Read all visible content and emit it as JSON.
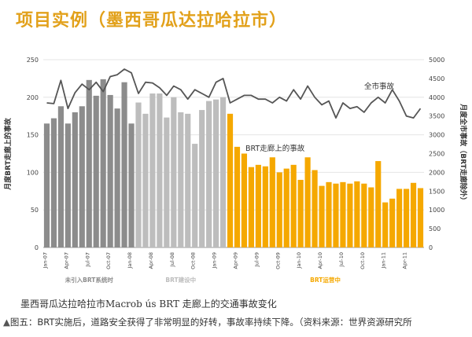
{
  "title": "项目实例（墨西哥瓜达拉哈拉市）",
  "caption": "墨西哥瓜达拉哈拉市Macrob ús BRT 走廊上的交通事故变化",
  "footer": "图五：BRT实施后，道路安全获得了非常明显的好转，事故率持续下降。（资料来源：世界资源研究所",
  "footer_marker": "▲",
  "chart_data": {
    "type": "bar",
    "ylabel": "月度BRT走廊上的事故",
    "y2label": "月度全市事故（BRT走廊除外）",
    "ylim": [
      0,
      250
    ],
    "y2lim": [
      0,
      5000
    ],
    "yticks": [
      0,
      50,
      100,
      150,
      200,
      250
    ],
    "y2ticks": [
      0,
      500,
      1000,
      1500,
      2000,
      2500,
      3000,
      3500,
      4000,
      4500,
      5000
    ],
    "xticks": [
      "Jan-07",
      "Apr-07",
      "Jul-07",
      "Oct-07",
      "Jan-08",
      "Apr-08",
      "Jul-08",
      "Oct-08",
      "Jan-09",
      "Apr-09",
      "Jul-09",
      "Oct-09",
      "Jan-10",
      "Apr-10",
      "Jul-10",
      "Oct-10",
      "Jan-11",
      "Apr-11"
    ],
    "periods": [
      {
        "label": "未引入BRT系统时",
        "color": "#8c8c8c"
      },
      {
        "label": "BRT建设中",
        "color": "#bdbdbd"
      },
      {
        "label": "BRT运营中",
        "color": "#f5a800"
      }
    ],
    "series": [
      {
        "name": "BRT走廊上的事故",
        "type": "bar",
        "axis": "left",
        "values": [
          165,
          172,
          188,
          165,
          180,
          188,
          223,
          202,
          224,
          203,
          185,
          220,
          165,
          193,
          178,
          205,
          205,
          173,
          200,
          180,
          178,
          138,
          183,
          195,
          197,
          200,
          178,
          134,
          125,
          107,
          110,
          108,
          120,
          100,
          105,
          110,
          90,
          120,
          103,
          82,
          87,
          85,
          87,
          85,
          88,
          85,
          80,
          115,
          60,
          65,
          78,
          78,
          86,
          79
        ],
        "period_index": [
          0,
          0,
          0,
          0,
          0,
          0,
          0,
          0,
          0,
          0,
          0,
          0,
          0,
          1,
          1,
          1,
          1,
          1,
          1,
          1,
          1,
          1,
          1,
          1,
          1,
          1,
          2,
          2,
          2,
          2,
          2,
          2,
          2,
          2,
          2,
          2,
          2,
          2,
          2,
          2,
          2,
          2,
          2,
          2,
          2,
          2,
          2,
          2,
          2,
          2,
          2,
          2,
          2,
          2
        ]
      },
      {
        "name": "全市事故",
        "type": "line",
        "axis": "right",
        "color": "#555555",
        "values": [
          3850,
          3830,
          4450,
          3700,
          4120,
          4350,
          4200,
          4400,
          4150,
          4550,
          4600,
          4750,
          4650,
          4100,
          4400,
          4380,
          4250,
          4050,
          4300,
          4200,
          3950,
          4200,
          4100,
          4000,
          4400,
          4500,
          3850,
          3950,
          4050,
          4050,
          3950,
          3950,
          3850,
          4000,
          3900,
          4200,
          3950,
          4300,
          4000,
          3800,
          3900,
          3450,
          3850,
          3700,
          3750,
          3600,
          3850,
          4000,
          3850,
          4200,
          3900,
          3500,
          3450,
          3700
        ]
      }
    ]
  }
}
